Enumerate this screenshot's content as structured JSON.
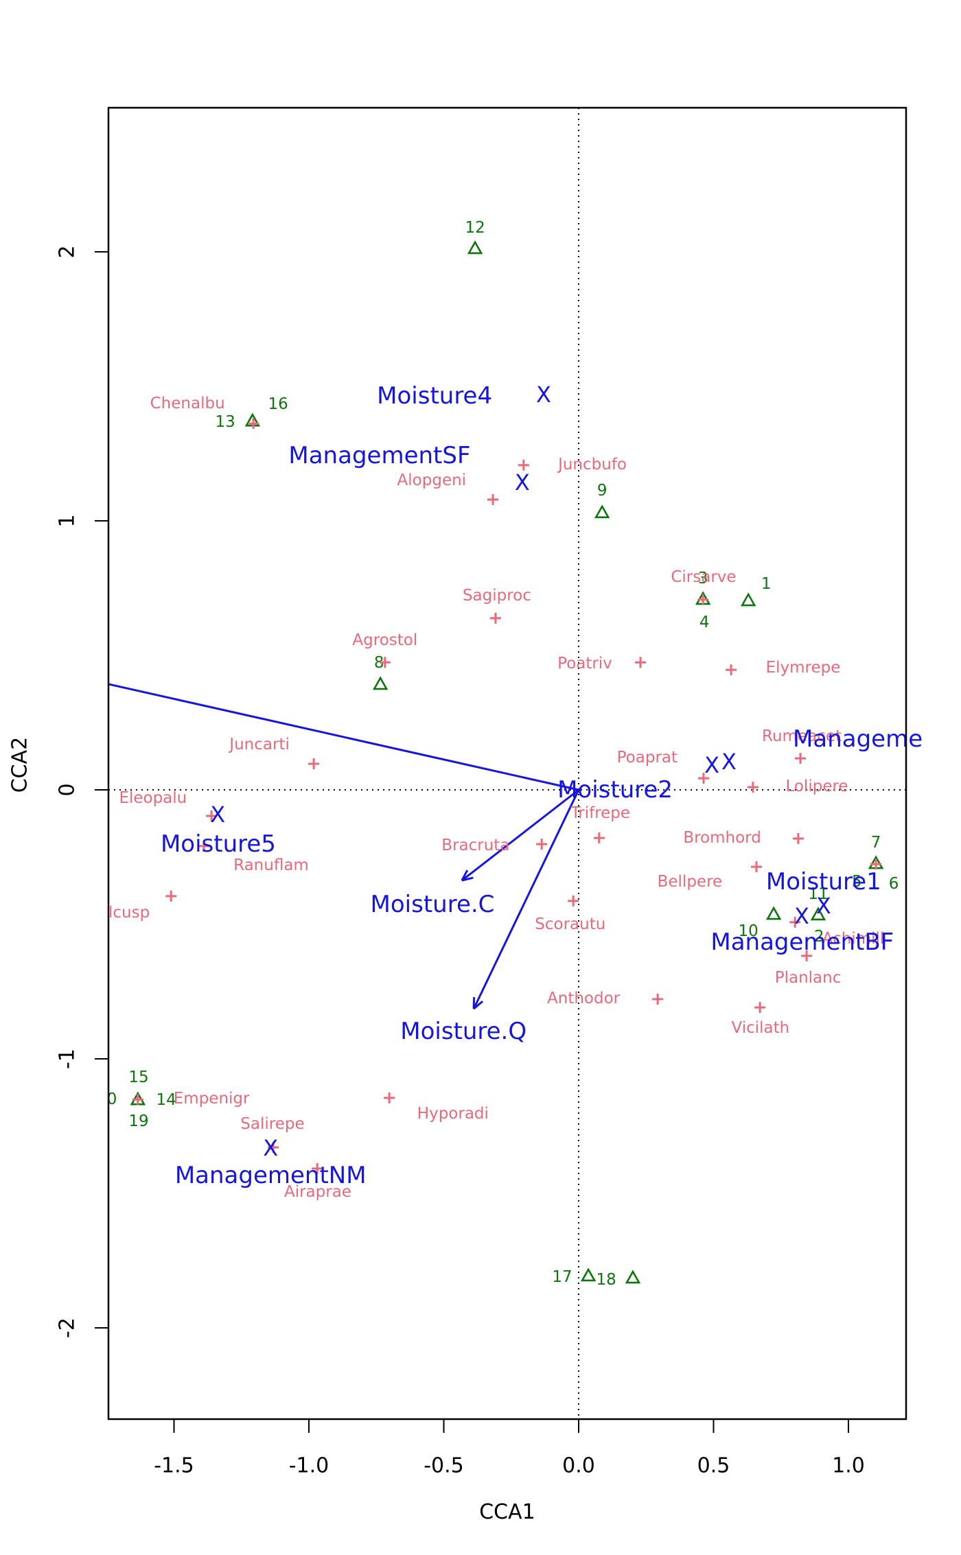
{
  "figure": {
    "background_color": "#ffffff",
    "frame_color": "#000000",
    "x_axis_title": "CCA1",
    "y_axis_title": "CCA2"
  },
  "chart_data": {
    "type": "scatter",
    "title": "",
    "subtitle": "",
    "xlabel": "CCA1",
    "ylabel": "CCA2",
    "xlim": [
      -1.743,
      1.214
    ],
    "ylim": [
      -2.339,
      2.536
    ],
    "grid": false,
    "reference_lines": {
      "vertical_x": 0.0,
      "horizontal_y": 0.0,
      "style": "dotted",
      "color": "#000000"
    },
    "x_ticks": {
      "values": [
        -1.5,
        -1.0,
        -0.5,
        0.0,
        0.5,
        1.0
      ],
      "labels": [
        "-1.5",
        "-1.0",
        "-0.5",
        "0.0",
        "0.5",
        "1.0"
      ]
    },
    "y_ticks": {
      "values": [
        2,
        1,
        0,
        -1,
        -2
      ],
      "labels": [
        "2",
        "1",
        "0",
        "-1",
        "-2"
      ]
    },
    "series": [
      {
        "name": "sites",
        "marker": "triangle",
        "color": "#0e750e",
        "points": [
          [
            -1.209,
            1.372
          ],
          [
            -0.384,
            2.013
          ],
          [
            0.087,
            1.031
          ],
          [
            0.461,
            0.709
          ],
          [
            0.629,
            0.704
          ],
          [
            -0.735,
            0.393
          ],
          [
            1.102,
            -0.273
          ],
          [
            0.723,
            -0.462
          ],
          [
            0.888,
            -0.464
          ],
          [
            -1.634,
            -1.151
          ],
          [
            0.036,
            -1.806
          ],
          [
            0.201,
            -1.814
          ]
        ],
        "labels": [
          {
            "t": "1",
            "x": 0.695,
            "y": 0.765
          },
          {
            "t": "2",
            "x": 0.891,
            "y": -0.546
          },
          {
            "t": "3",
            "x": 0.461,
            "y": 0.786
          },
          {
            "t": "4",
            "x": 0.466,
            "y": 0.622
          },
          {
            "t": "5",
            "x": 1.031,
            "y": -0.342
          },
          {
            "t": "6",
            "x": 1.168,
            "y": -0.349
          },
          {
            "t": "7",
            "x": 1.102,
            "y": -0.196
          },
          {
            "t": "8",
            "x": -0.74,
            "y": 0.472
          },
          {
            "t": "9",
            "x": 0.087,
            "y": 1.112
          },
          {
            "t": "10",
            "x": 0.629,
            "y": -0.526
          },
          {
            "t": "11",
            "x": 0.888,
            "y": -0.388
          },
          {
            "t": "12",
            "x": -0.384,
            "y": 2.089
          },
          {
            "t": "13",
            "x": -1.31,
            "y": 1.367
          },
          {
            "t": "14",
            "x": -1.529,
            "y": -1.153
          },
          {
            "t": "15",
            "x": -1.631,
            "y": -1.069
          },
          {
            "t": "16",
            "x": -1.114,
            "y": 1.434
          },
          {
            "t": "17",
            "x": -0.061,
            "y": -1.811
          },
          {
            "t": "18",
            "x": 0.102,
            "y": -1.821
          },
          {
            "t": "19",
            "x": -1.631,
            "y": -1.232
          },
          {
            "t": "0",
            "x": -1.73,
            "y": -1.151
          }
        ]
      },
      {
        "name": "species",
        "marker": "plus",
        "color": "#e8697a",
        "points": [
          [
            -1.206,
            1.362
          ],
          [
            -0.204,
            1.207
          ],
          [
            -0.318,
            1.079
          ],
          [
            -0.308,
            0.638
          ],
          [
            -0.718,
            0.474
          ],
          [
            0.229,
            0.474
          ],
          [
            0.565,
            0.446
          ],
          [
            0.461,
            0.707
          ],
          [
            -0.982,
            0.097
          ],
          [
            0.822,
            0.117
          ],
          [
            0.463,
            0.043
          ],
          [
            0.646,
            0.01
          ],
          [
            -1.361,
            -0.097
          ],
          [
            0.076,
            -0.179
          ],
          [
            -0.137,
            -0.202
          ],
          [
            0.814,
            -0.181
          ],
          [
            -1.389,
            -0.209
          ],
          [
            -1.511,
            -0.395
          ],
          [
            0.659,
            -0.286
          ],
          [
            -0.02,
            -0.413
          ],
          [
            0.802,
            -0.492
          ],
          [
            1.102,
            -0.276
          ],
          [
            0.845,
            -0.617
          ],
          [
            0.293,
            -0.778
          ],
          [
            0.672,
            -0.809
          ],
          [
            -0.702,
            -1.145
          ],
          [
            -1.634,
            -1.151
          ],
          [
            -1.132,
            -1.329
          ],
          [
            -0.969,
            -1.408
          ]
        ],
        "labels": [
          {
            "t": "Chenalbu",
            "x": -1.45,
            "y": 1.436
          },
          {
            "t": "Juncbufo",
            "x": 0.051,
            "y": 1.209
          },
          {
            "t": "Alopgeni",
            "x": -0.545,
            "y": 1.151
          },
          {
            "t": "Sagiproc",
            "x": -0.303,
            "y": 0.722
          },
          {
            "t": "Agrostol",
            "x": -0.718,
            "y": 0.556
          },
          {
            "t": "Poatriv",
            "x": 0.023,
            "y": 0.469
          },
          {
            "t": "Elymrepe",
            "x": 0.832,
            "y": 0.454
          },
          {
            "t": "Cirsarve",
            "x": 0.463,
            "y": 0.791
          },
          {
            "t": "Juncarti",
            "x": -1.183,
            "y": 0.168
          },
          {
            "t": "Rumeacet",
            "x": 0.827,
            "y": 0.199
          },
          {
            "t": "Poaprat",
            "x": 0.254,
            "y": 0.12
          },
          {
            "t": "Lolipere",
            "x": 0.883,
            "y": 0.013
          },
          {
            "t": "Eleopalu",
            "x": -1.578,
            "y": -0.031
          },
          {
            "t": "Trifrepe",
            "x": 0.081,
            "y": -0.087
          },
          {
            "t": "Bracruta",
            "x": -0.382,
            "y": -0.207
          },
          {
            "t": "Bromhord",
            "x": 0.532,
            "y": -0.179
          },
          {
            "t": "Ranuflam",
            "x": -1.14,
            "y": -0.281
          },
          {
            "t": "lcusp",
            "x": -1.743,
            "y": -0.457,
            "a": "start"
          },
          {
            "t": "Bellpere",
            "x": 0.412,
            "y": -0.342
          },
          {
            "t": "Scorautu",
            "x": -0.031,
            "y": -0.5
          },
          {
            "t": "Achimill",
            "x": 1.018,
            "y": -0.554
          },
          {
            "t": "Planlanc",
            "x": 0.85,
            "y": -0.699
          },
          {
            "t": "Anthodor",
            "x": 0.018,
            "y": -0.776
          },
          {
            "t": "Vicilath",
            "x": 0.674,
            "y": -0.885
          },
          {
            "t": "Hyporadi",
            "x": -0.466,
            "y": -1.204
          },
          {
            "t": "Empenigr",
            "x": -1.361,
            "y": -1.148
          },
          {
            "t": "Salirepe",
            "x": -1.135,
            "y": -1.242
          },
          {
            "t": "Airaprae",
            "x": -0.967,
            "y": -1.495
          }
        ]
      },
      {
        "name": "constraint-centroids",
        "marker": "X",
        "color": "#1515e0",
        "points": [
          [
            -0.13,
            1.469
          ],
          [
            -0.209,
            1.143
          ],
          [
            -1.338,
            -0.092
          ],
          [
            0.494,
            0.092
          ],
          [
            0.557,
            0.105
          ],
          [
            0.908,
            -0.431
          ],
          [
            0.827,
            -0.469
          ],
          [
            -1.142,
            -1.332
          ]
        ],
        "labels": [
          {
            "t": "Moisture4",
            "x": -0.534,
            "y": 1.464
          },
          {
            "t": "ManagementSF",
            "x": -0.738,
            "y": 1.242
          },
          {
            "t": "Moisture2",
            "x": 0.135,
            "y": 0.0
          },
          {
            "t": "Manageme",
            "x": 0.794,
            "y": 0.189,
            "a": "start"
          },
          {
            "t": "Moisture5",
            "x": -1.336,
            "y": -0.202
          },
          {
            "t": "Moisture.C",
            "x": -0.542,
            "y": -0.426
          },
          {
            "t": "Moisture.Q",
            "x": -0.427,
            "y": -0.898
          },
          {
            "t": "Moisture1",
            "x": 0.908,
            "y": -0.342
          },
          {
            "t": "ManagementBF",
            "x": 0.829,
            "y": -0.566
          },
          {
            "t": "ManagementNM",
            "x": -1.142,
            "y": -1.434
          }
        ]
      }
    ],
    "arrows": [
      {
        "name": "moisture-linear",
        "x1": 0,
        "y1": 0,
        "x2": -1.743,
        "y2": 0.393,
        "head": false,
        "color": "#1515e0"
      },
      {
        "name": "moisture-c",
        "x1": 0,
        "y1": 0,
        "x2": -0.433,
        "y2": -0.337,
        "head": true,
        "color": "#1515e0"
      },
      {
        "name": "moisture-q",
        "x1": 0,
        "y1": 0,
        "x2": -0.389,
        "y2": -0.814,
        "head": true,
        "color": "#1515e0"
      }
    ]
  },
  "colors": {
    "sites": "#0e750e",
    "species": "#e8697a",
    "constraints": "#1515e0",
    "axis": "#000000",
    "background": "#ffffff"
  }
}
